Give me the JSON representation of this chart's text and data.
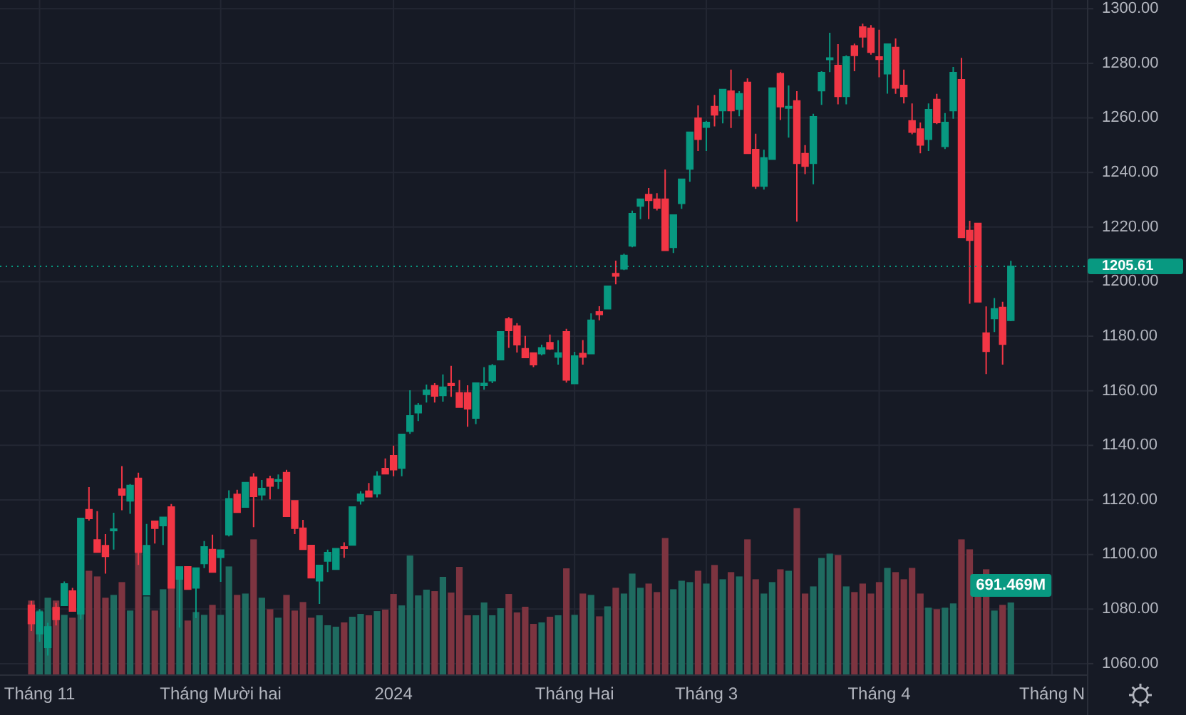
{
  "chart_data": {
    "type": "candlestick",
    "categories": [
      null,
      "Tháng 11",
      null,
      null,
      null,
      null,
      null,
      null,
      null,
      null,
      null,
      null,
      null,
      null,
      null,
      null,
      null,
      null,
      null,
      null,
      null,
      null,
      null,
      "Tháng Mười hai",
      null,
      null,
      null,
      null,
      null,
      null,
      null,
      null,
      null,
      null,
      null,
      null,
      null,
      null,
      null,
      null,
      null,
      null,
      null,
      null,
      "2024",
      null,
      null,
      null,
      null,
      null,
      null,
      null,
      null,
      null,
      null,
      null,
      null,
      null,
      null,
      null,
      null,
      null,
      null,
      null,
      null,
      null,
      "Tháng Hai",
      null,
      null,
      null,
      null,
      null,
      null,
      null,
      null,
      null,
      null,
      null,
      null,
      null,
      null,
      null,
      "Tháng 3",
      null,
      null,
      null,
      null,
      null,
      null,
      null,
      null,
      null,
      null,
      null,
      null,
      null,
      null,
      null,
      null,
      null,
      null,
      null,
      null,
      "Tháng 4",
      null,
      null,
      null,
      null,
      null,
      null,
      null,
      null,
      null,
      null,
      null,
      null,
      null,
      null,
      null,
      null,
      null,
      null,
      null,
      null,
      "Tháng N"
    ],
    "ylim": [
      1055.8,
      1303.2
    ],
    "yticks": [
      {
        "value": 1060,
        "label": "1060.00"
      },
      {
        "value": 1080,
        "label": "1080.00"
      },
      {
        "value": 1100,
        "label": "1100.00"
      },
      {
        "value": 1120,
        "label": "1120.00"
      },
      {
        "value": 1140,
        "label": "1140.00"
      },
      {
        "value": 1160,
        "label": "1160.00"
      },
      {
        "value": 1180,
        "label": "1180.00"
      },
      {
        "value": 1200,
        "label": "1200.00"
      },
      {
        "value": 1220,
        "label": "1220.00"
      },
      {
        "value": 1240,
        "label": "1240.00"
      },
      {
        "value": 1260,
        "label": "1260.00"
      },
      {
        "value": 1280,
        "label": "1280.00"
      },
      {
        "value": 1300,
        "label": "1300.00"
      }
    ],
    "y2lim": [
      0,
      6430
    ],
    "grid": true,
    "series": [
      {
        "ohlc": [
          [
            1081.4,
            1083,
            1072,
            1074.7
          ],
          [
            1071,
            1080,
            1068,
            1078.8
          ],
          [
            1066,
            1075,
            1063,
            1073.5
          ],
          [
            1080.5,
            1082.3,
            1074,
            1076.2
          ],
          [
            1081.4,
            1090.1,
            1081.4,
            1089.2
          ],
          [
            1086.6,
            1087.8,
            1079.3,
            1079.3
          ],
          [
            1078.3,
            1113.2,
            1076.2,
            1113.2
          ],
          [
            1116.4,
            1124.7,
            1112.4,
            1113.2
          ],
          [
            1105.3,
            1115.9,
            1100.9,
            1100.9
          ],
          [
            1103.2,
            1107.5,
            1093,
            1099.3
          ],
          [
            1109,
            1115.3,
            1101.8,
            1109.3
          ],
          [
            1124,
            1132.4,
            1116.2,
            1121.8
          ],
          [
            1119.7,
            1125.8,
            1114.9,
            1125.3
          ],
          [
            1127.9,
            1130,
            1096.2,
            1100.9
          ],
          [
            1085.3,
            1111.2,
            1085.3,
            1103.2
          ],
          [
            1112.2,
            1112.2,
            1104,
            1109.6
          ],
          [
            1110.6,
            1113.6,
            1103.5,
            1113.6
          ],
          [
            1117.4,
            1118.5,
            1087.8,
            1087.8
          ],
          [
            1091,
            1095.4,
            1073.2,
            1095.4
          ],
          [
            1095.5,
            1095.5,
            1087.3,
            1087.3
          ],
          [
            1087.8,
            1095,
            1076.7,
            1095
          ],
          [
            1096.7,
            1104.9,
            1095,
            1102.8
          ],
          [
            1101.8,
            1107.3,
            1093.6,
            1093.6
          ],
          [
            1099,
            1101.6,
            1090,
            1101.6
          ],
          [
            1107.3,
            1123.5,
            1106.6,
            1120.4
          ],
          [
            1122,
            1123.7,
            1115.5,
            1115.5
          ],
          [
            1117.4,
            1126.3,
            1117.4,
            1126.3
          ],
          [
            1128.3,
            1129.8,
            1110,
            1121.3
          ],
          [
            1121.9,
            1127.3,
            1119.9,
            1124.2
          ],
          [
            1127.7,
            1128.9,
            1120.2,
            1125.1
          ],
          [
            1127,
            1129.3,
            1124,
            1127.4
          ],
          [
            1130,
            1131,
            1114,
            1114
          ],
          [
            1119.7,
            1119.7,
            1107.5,
            1109.6
          ],
          [
            1109.6,
            1112.7,
            1101.9,
            1101.9
          ],
          [
            1103.3,
            1103.3,
            1091.5,
            1091.5
          ],
          [
            1090.4,
            1096,
            1081.9,
            1096
          ],
          [
            1097.6,
            1101.8,
            1093.6,
            1100.7
          ],
          [
            1094.6,
            1102.1,
            1094.6,
            1102.1
          ],
          [
            1102.8,
            1104.5,
            1098.8,
            1102.4
          ],
          [
            1103.5,
            1117.4,
            1103.5,
            1117.4
          ],
          [
            1119.7,
            1123.2,
            1118.3,
            1122.1
          ],
          [
            1123.2,
            1126.2,
            1121.2,
            1121.2
          ],
          [
            1122.3,
            1130.5,
            1120.9,
            1128.7
          ],
          [
            1131.5,
            1135.2,
            1129.3,
            1129.6
          ],
          [
            1136.2,
            1139.9,
            1128.7,
            1131.1
          ],
          [
            1131.7,
            1144,
            1128.7,
            1144
          ],
          [
            1145.2,
            1160.2,
            1144.2,
            1150.8
          ],
          [
            1152,
            1155.5,
            1148.9,
            1154.6
          ],
          [
            1158.7,
            1162.3,
            1155.7,
            1160.2
          ],
          [
            1161.8,
            1162.8,
            1155.7,
            1158.1
          ],
          [
            1158.3,
            1166,
            1156,
            1161.3
          ],
          [
            1162.6,
            1169.1,
            1157.8,
            1162
          ],
          [
            1159.2,
            1163.9,
            1154,
            1154
          ],
          [
            1159.2,
            1162,
            1146.8,
            1153.4
          ],
          [
            1150,
            1162.8,
            1147.8,
            1162.8
          ],
          [
            1162,
            1168.7,
            1160.4,
            1162.7
          ],
          [
            1163.7,
            1169.8,
            1162.8,
            1169.1
          ],
          [
            1171.4,
            1181.6,
            1171.4,
            1181.6
          ],
          [
            1186.3,
            1187,
            1175.7,
            1182.1
          ],
          [
            1183.7,
            1184.8,
            1174,
            1176.9
          ],
          [
            1175.4,
            1180.1,
            1172.2,
            1172.2
          ],
          [
            1173.8,
            1173.8,
            1168.7,
            1169.6
          ],
          [
            1173.6,
            1176.9,
            1173,
            1175.7
          ],
          [
            1177.6,
            1180.6,
            1175,
            1175.4
          ],
          [
            1172.4,
            1178.5,
            1169.6,
            1173.8
          ],
          [
            1181.6,
            1182.7,
            1163,
            1164
          ],
          [
            1162.7,
            1174.3,
            1162.5,
            1172.7
          ],
          [
            1173.6,
            1178.6,
            1169.6,
            1172.4
          ],
          [
            1173.6,
            1188.4,
            1173.6,
            1185.8
          ],
          [
            1188.9,
            1191,
            1185.8,
            1188
          ],
          [
            1190.1,
            1198.3,
            1190.1,
            1198.3
          ],
          [
            1202.9,
            1207.7,
            1199,
            1202.1
          ],
          [
            1204.7,
            1210.2,
            1204.2,
            1209.6
          ],
          [
            1213.1,
            1226,
            1212.6,
            1224.9
          ],
          [
            1227.7,
            1230.2,
            1222.9,
            1230.2
          ],
          [
            1231.9,
            1234.3,
            1222.9,
            1229.8
          ],
          [
            1230.2,
            1232.4,
            1226.1,
            1227
          ],
          [
            1230.2,
            1241.1,
            1211.5,
            1211.5
          ],
          [
            1212.6,
            1224.4,
            1210.5,
            1224.4
          ],
          [
            1228.7,
            1237.5,
            1226.7,
            1237.5
          ],
          [
            1241.3,
            1254.7,
            1236.6,
            1254.7
          ],
          [
            1259.9,
            1264.6,
            1247.9,
            1252.2
          ],
          [
            1256.6,
            1258.9,
            1247.9,
            1258.3
          ],
          [
            1264.1,
            1268.4,
            1256.9,
            1261.1
          ],
          [
            1262.7,
            1270.4,
            1258,
            1270.4
          ],
          [
            1269.8,
            1277.7,
            1256.3,
            1262.7
          ],
          [
            1263.2,
            1269.8,
            1260.6,
            1268.8
          ],
          [
            1273,
            1274.5,
            1247,
            1247
          ],
          [
            1248.4,
            1254.2,
            1234,
            1235
          ],
          [
            1235,
            1248.3,
            1233.7,
            1245.3
          ],
          [
            1244.9,
            1270.9,
            1244.9,
            1270.9
          ],
          [
            1276.2,
            1276.8,
            1259.2,
            1264.1
          ],
          [
            1263.7,
            1271.9,
            1252.8,
            1264.1
          ],
          [
            1266.2,
            1269.8,
            1222,
            1243.4
          ],
          [
            1246.9,
            1250,
            1239.4,
            1242.3
          ],
          [
            1243.4,
            1261.5,
            1235.7,
            1260.4
          ],
          [
            1270,
            1277.1,
            1264.8,
            1276.6
          ],
          [
            1281.5,
            1291.2,
            1276.8,
            1281.9
          ],
          [
            1279.2,
            1287,
            1265,
            1267.9
          ],
          [
            1267.9,
            1282.9,
            1265,
            1282.3
          ],
          [
            1286.4,
            1287.2,
            1277.1,
            1282.9
          ],
          [
            1293.3,
            1294.5,
            1285.8,
            1289.7
          ],
          [
            1292.8,
            1294,
            1283.2,
            1284.1
          ],
          [
            1282.3,
            1292.3,
            1274.9,
            1281.5
          ],
          [
            1276.2,
            1287,
            1268.9,
            1287
          ],
          [
            1285.8,
            1289.1,
            1268.8,
            1271
          ],
          [
            1271.9,
            1277.7,
            1265.3,
            1267.9
          ],
          [
            1258.9,
            1265.3,
            1254,
            1254.8
          ],
          [
            1255.9,
            1258.3,
            1247,
            1250.1
          ],
          [
            1252.2,
            1265.3,
            1247.9,
            1263
          ],
          [
            1266.7,
            1268.8,
            1257.7,
            1258.3
          ],
          [
            1249.6,
            1261.8,
            1248.6,
            1258.3
          ],
          [
            1262.7,
            1278.7,
            1259.7,
            1276.6
          ],
          [
            1274,
            1282,
            1216,
            1216.2
          ],
          [
            1218.7,
            1222.3,
            1191.9,
            1215.2
          ],
          [
            1221.3,
            1221.3,
            1192.6,
            1192.6
          ],
          [
            1181.1,
            1190.9,
            1166.1,
            1174.5
          ],
          [
            1186.5,
            1194,
            1181.5,
            1190
          ],
          [
            1190.5,
            1192.6,
            1169.6,
            1177.1
          ],
          [
            1185.8,
            1207.6,
            1185.5,
            1205.61
          ],
          null,
          null,
          null,
          null,
          null
        ],
        "colors": [
          "#f23645",
          "#089981",
          "#089981",
          "#f23645",
          "#089981",
          "#f23645",
          "#089981",
          "#f23645",
          "#f23645",
          "#f23645",
          "#089981",
          "#f23645",
          "#089981",
          "#f23645",
          "#089981",
          "#f23645",
          "#089981",
          "#f23645",
          "#089981",
          "#f23645",
          "#089981",
          "#089981",
          "#f23645",
          "#089981",
          "#089981",
          "#f23645",
          "#089981",
          "#f23645",
          "#089981",
          "#f23645",
          "#089981",
          "#f23645",
          "#f23645",
          "#f23645",
          "#f23645",
          "#089981",
          "#089981",
          "#089981",
          "#f23645",
          "#089981",
          "#089981",
          "#f23645",
          "#089981",
          "#f23645",
          "#f23645",
          "#089981",
          "#089981",
          "#089981",
          "#089981",
          "#f23645",
          "#089981",
          "#f23645",
          "#f23645",
          "#f23645",
          "#089981",
          "#089981",
          "#089981",
          "#089981",
          "#f23645",
          "#f23645",
          "#f23645",
          "#f23645",
          "#089981",
          "#f23645",
          "#089981",
          "#f23645",
          "#089981",
          "#f23645",
          "#089981",
          "#f23645",
          "#089981",
          "#f23645",
          "#089981",
          "#089981",
          "#089981",
          "#f23645",
          "#f23645",
          "#f23645",
          "#089981",
          "#089981",
          "#089981",
          "#f23645",
          "#089981",
          "#f23645",
          "#089981",
          "#f23645",
          "#089981",
          "#f23645",
          "#f23645",
          "#089981",
          "#089981",
          "#f23645",
          "#089981",
          "#f23645",
          "#f23645",
          "#089981",
          "#089981",
          "#089981",
          "#f23645",
          "#089981",
          "#f23645",
          "#f23645",
          "#f23645",
          "#f23645",
          "#089981",
          "#f23645",
          "#f23645",
          "#f23645",
          "#f23645",
          "#089981",
          "#f23645",
          "#089981",
          "#089981",
          "#f23645",
          "#f23645",
          "#f23645",
          "#f23645",
          "#089981",
          "#f23645",
          "#089981",
          null,
          null,
          null,
          null,
          null
        ]
      },
      {
        "type": "bar",
        "axis": "y2",
        "values": [
          710,
          615,
          737,
          710,
          574,
          547,
          601,
          994,
          940,
          737,
          764,
          886,
          615,
          1171,
          750,
          615,
          818,
          832,
          1035,
          520,
          601,
          574,
          669,
          574,
          1035,
          764,
          777,
          1293,
          737,
          628,
          547,
          764,
          615,
          696,
          547,
          570,
          475,
          461,
          502,
          556,
          583,
          570,
          610,
          624,
          773,
          664,
          1139,
          759,
          814,
          800,
          936,
          786,
          1031,
          570,
          570,
          692,
          570,
          637,
          773,
          597,
          651,
          488,
          502,
          556,
          570,
          1017,
          574,
          777,
          764,
          560,
          655,
          832,
          777,
          967,
          832,
          872,
          791,
          1306,
          818,
          899,
          886,
          994,
          872,
          1049,
          913,
          981,
          940,
          1293,
          913,
          777,
          886,
          1008,
          994,
          1591,
          777,
          845,
          1116,
          1157,
          1144,
          845,
          791,
          872,
          777,
          886,
          1021,
          981,
          913,
          1021,
          777,
          642,
          628,
          642,
          683,
          1293,
          1198,
          750,
          1008,
          615,
          669,
          691.469,
          null,
          null,
          null,
          null,
          null
        ],
        "colors": [
          "#7d3440",
          "#1f6b60",
          "#1f6b60",
          "#7d3440",
          "#1f6b60",
          "#7d3440",
          "#1f6b60",
          "#7d3440",
          "#7d3440",
          "#7d3440",
          "#1f6b60",
          "#7d3440",
          "#1f6b60",
          "#7d3440",
          "#1f6b60",
          "#7d3440",
          "#1f6b60",
          "#7d3440",
          "#1f6b60",
          "#7d3440",
          "#1f6b60",
          "#1f6b60",
          "#7d3440",
          "#1f6b60",
          "#1f6b60",
          "#7d3440",
          "#1f6b60",
          "#7d3440",
          "#1f6b60",
          "#7d3440",
          "#1f6b60",
          "#7d3440",
          "#7d3440",
          "#7d3440",
          "#7d3440",
          "#1f6b60",
          "#1f6b60",
          "#1f6b60",
          "#7d3440",
          "#1f6b60",
          "#1f6b60",
          "#7d3440",
          "#1f6b60",
          "#7d3440",
          "#7d3440",
          "#1f6b60",
          "#1f6b60",
          "#1f6b60",
          "#1f6b60",
          "#7d3440",
          "#1f6b60",
          "#7d3440",
          "#7d3440",
          "#7d3440",
          "#1f6b60",
          "#1f6b60",
          "#1f6b60",
          "#1f6b60",
          "#7d3440",
          "#7d3440",
          "#7d3440",
          "#7d3440",
          "#1f6b60",
          "#7d3440",
          "#1f6b60",
          "#7d3440",
          "#1f6b60",
          "#7d3440",
          "#1f6b60",
          "#7d3440",
          "#1f6b60",
          "#7d3440",
          "#1f6b60",
          "#1f6b60",
          "#1f6b60",
          "#7d3440",
          "#7d3440",
          "#7d3440",
          "#1f6b60",
          "#1f6b60",
          "#1f6b60",
          "#7d3440",
          "#1f6b60",
          "#7d3440",
          "#1f6b60",
          "#7d3440",
          "#1f6b60",
          "#7d3440",
          "#7d3440",
          "#1f6b60",
          "#1f6b60",
          "#7d3440",
          "#1f6b60",
          "#7d3440",
          "#7d3440",
          "#1f6b60",
          "#1f6b60",
          "#1f6b60",
          "#7d3440",
          "#1f6b60",
          "#7d3440",
          "#7d3440",
          "#7d3440",
          "#7d3440",
          "#1f6b60",
          "#7d3440",
          "#7d3440",
          "#7d3440",
          "#7d3440",
          "#1f6b60",
          "#7d3440",
          "#1f6b60",
          "#1f6b60",
          "#7d3440",
          "#7d3440",
          "#7d3440",
          "#7d3440",
          "#1f6b60",
          "#7d3440",
          "#1f6b60",
          null,
          null,
          null,
          null,
          null
        ],
        "value_labels": [
          null,
          null,
          null,
          null,
          null,
          null,
          null,
          null,
          null,
          null,
          null,
          null,
          null,
          null,
          null,
          null,
          null,
          null,
          null,
          null,
          null,
          null,
          null,
          null,
          null,
          null,
          null,
          null,
          null,
          null,
          null,
          null,
          null,
          null,
          null,
          null,
          null,
          null,
          null,
          null,
          null,
          null,
          null,
          null,
          null,
          null,
          null,
          null,
          null,
          null,
          null,
          null,
          null,
          null,
          null,
          null,
          null,
          null,
          null,
          null,
          null,
          null,
          null,
          null,
          null,
          null,
          null,
          null,
          null,
          null,
          null,
          null,
          null,
          null,
          null,
          null,
          null,
          null,
          null,
          null,
          null,
          null,
          null,
          null,
          null,
          null,
          null,
          null,
          null,
          null,
          null,
          null,
          null,
          null,
          null,
          null,
          null,
          null,
          null,
          null,
          null,
          null,
          null,
          null,
          null,
          null,
          null,
          null,
          null,
          null,
          null,
          null,
          null,
          null,
          null,
          null,
          null,
          null,
          null,
          "691.469M",
          null,
          null,
          null,
          null,
          null
        ]
      }
    ],
    "ref_lines": [
      {
        "axis": "y",
        "value": 1205.61,
        "label": "1205.61",
        "color": "#089981",
        "line_style": "dotted"
      }
    ]
  }
}
